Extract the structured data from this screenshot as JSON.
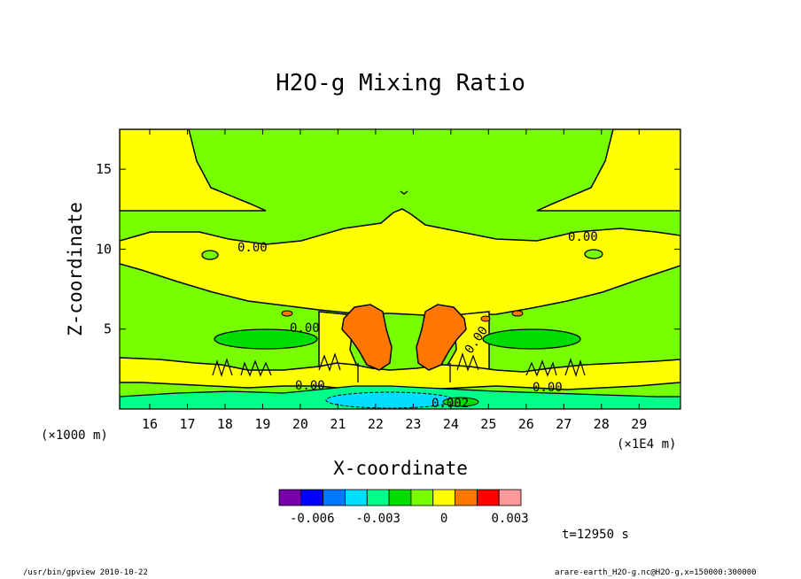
{
  "chart_data": {
    "type": "heatmap",
    "title": "H2O-g Mixing Ratio",
    "xlabel": "X-coordinate",
    "ylabel": "Z-coordinate",
    "x_unit": "(×1E4 m)",
    "y_unit": "(×1000 m)",
    "xlim": [
      15.2,
      30.1
    ],
    "ylim": [
      0,
      17.5
    ],
    "x_ticks": [
      16,
      17,
      18,
      19,
      20,
      21,
      22,
      23,
      24,
      25,
      26,
      27,
      28,
      29
    ],
    "y_ticks": [
      5,
      10,
      15
    ],
    "contour_labels": [
      "0.00",
      "0.00",
      "0.00",
      "0.00",
      "0.00",
      "0.00",
      "0.002"
    ],
    "colorbar": {
      "colors": [
        "#7700aa",
        "#0000ff",
        "#0077ff",
        "#00ddff",
        "#00ff88",
        "#00dd00",
        "#77ff00",
        "#ffff00",
        "#ff7700",
        "#ff0000",
        "#ff9999"
      ],
      "tick_labels": [
        "-0.006",
        "-0.003",
        "0",
        "0.003"
      ]
    },
    "time_label": "t=12950 s"
  },
  "footer": {
    "left": "/usr/bin/gpview  2010-10-22",
    "right": "arare-earth_H2O-g.nc@H2O-g,x=150000:300000"
  }
}
